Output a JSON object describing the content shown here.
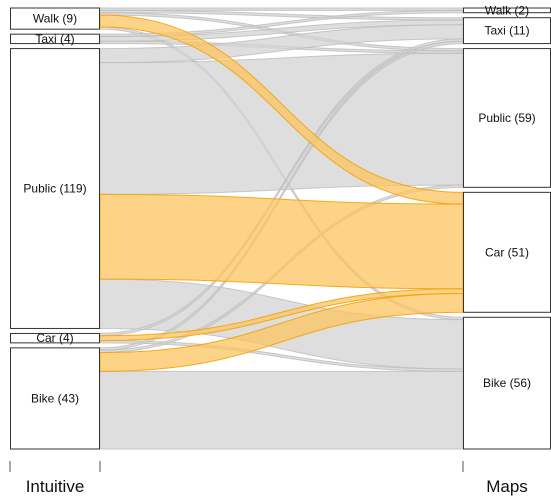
{
  "chart_data": {
    "type": "alluvial",
    "axes": [
      {
        "id": "intuitive",
        "label": "Intuitive"
      },
      {
        "id": "maps",
        "label": "Maps"
      }
    ],
    "left_nodes": [
      {
        "id": "walk",
        "label": "Walk (9)",
        "count": 9
      },
      {
        "id": "taxi",
        "label": "Taxi (4)",
        "count": 4
      },
      {
        "id": "public",
        "label": "Public (119)",
        "count": 119
      },
      {
        "id": "car",
        "label": "Car (4)",
        "count": 4
      },
      {
        "id": "bike",
        "label": "Bike (43)",
        "count": 43
      }
    ],
    "right_nodes": [
      {
        "id": "walk",
        "label": "Walk (2)",
        "count": 2
      },
      {
        "id": "taxi",
        "label": "Taxi (11)",
        "count": 11
      },
      {
        "id": "public",
        "label": "Public (59)",
        "count": 59
      },
      {
        "id": "car",
        "label": "Car (51)",
        "count": 51
      },
      {
        "id": "bike",
        "label": "Bike (56)",
        "count": 56
      }
    ],
    "flows": [
      {
        "from": "walk",
        "to": "walk",
        "value": 1,
        "highlight": false
      },
      {
        "from": "walk",
        "to": "taxi",
        "value": 1,
        "highlight": false
      },
      {
        "from": "walk",
        "to": "public",
        "value": 1,
        "highlight": false
      },
      {
        "from": "walk",
        "to": "car",
        "value": 5,
        "highlight": true
      },
      {
        "from": "walk",
        "to": "bike",
        "value": 1,
        "highlight": false
      },
      {
        "from": "taxi",
        "to": "walk",
        "value": 1,
        "highlight": false
      },
      {
        "from": "taxi",
        "to": "taxi",
        "value": 2,
        "highlight": false
      },
      {
        "from": "taxi",
        "to": "public",
        "value": 1,
        "highlight": false
      },
      {
        "from": "public",
        "to": "taxi",
        "value": 6,
        "highlight": false
      },
      {
        "from": "public",
        "to": "public",
        "value": 56,
        "highlight": false
      },
      {
        "from": "public",
        "to": "car",
        "value": 36,
        "highlight": true
      },
      {
        "from": "public",
        "to": "bike",
        "value": 21,
        "highlight": false
      },
      {
        "from": "car",
        "to": "taxi",
        "value": 1,
        "highlight": false
      },
      {
        "from": "car",
        "to": "car",
        "value": 2,
        "highlight": true
      },
      {
        "from": "car",
        "to": "bike",
        "value": 1,
        "highlight": false
      },
      {
        "from": "bike",
        "to": "taxi",
        "value": 1,
        "highlight": false
      },
      {
        "from": "bike",
        "to": "public",
        "value": 1,
        "highlight": false
      },
      {
        "from": "bike",
        "to": "car",
        "value": 8,
        "highlight": true
      },
      {
        "from": "bike",
        "to": "bike",
        "value": 33,
        "highlight": false
      }
    ],
    "colors": {
      "highlight_fill": "#fcc45f",
      "highlight_stroke": "#f4a20a",
      "neutral_fill": "#d3d3d3",
      "neutral_stroke": "#bdbdbd",
      "box_stroke": "#333333"
    }
  }
}
